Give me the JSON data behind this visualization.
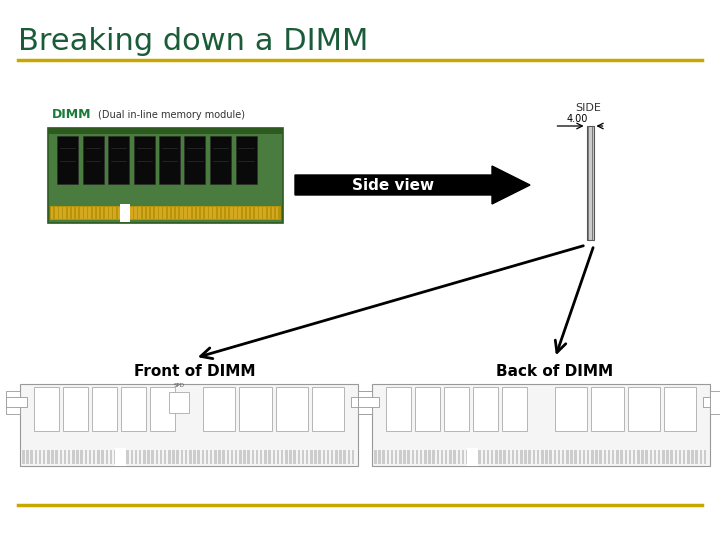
{
  "title": "Breaking down a DIMM",
  "title_color": "#1a5c38",
  "title_fontsize": 22,
  "gold_line_color": "#c8a800",
  "dimm_label": "DIMM",
  "dimm_label_color": "#1a7a3a",
  "dimm_sublabel": "(Dual in-line memory module)",
  "dimm_sublabel_color": "#333333",
  "side_label": "SIDE",
  "side_label_color": "#333333",
  "side_view_label": "Side view",
  "side_view_label_color": "#ffffff",
  "measurement_label": "4.00",
  "front_label": "Front of DIMM",
  "back_label": "Back of DIMM",
  "label_fontsize": 11,
  "background_color": "#ffffff",
  "pcb_green": "#4a7c3f",
  "pcb_dark": "#2d5a1f",
  "chip_black": "#111111",
  "gold_contact": "#c8a800",
  "schematic_bg": "#f5f5f5",
  "schematic_edge": "#999999"
}
